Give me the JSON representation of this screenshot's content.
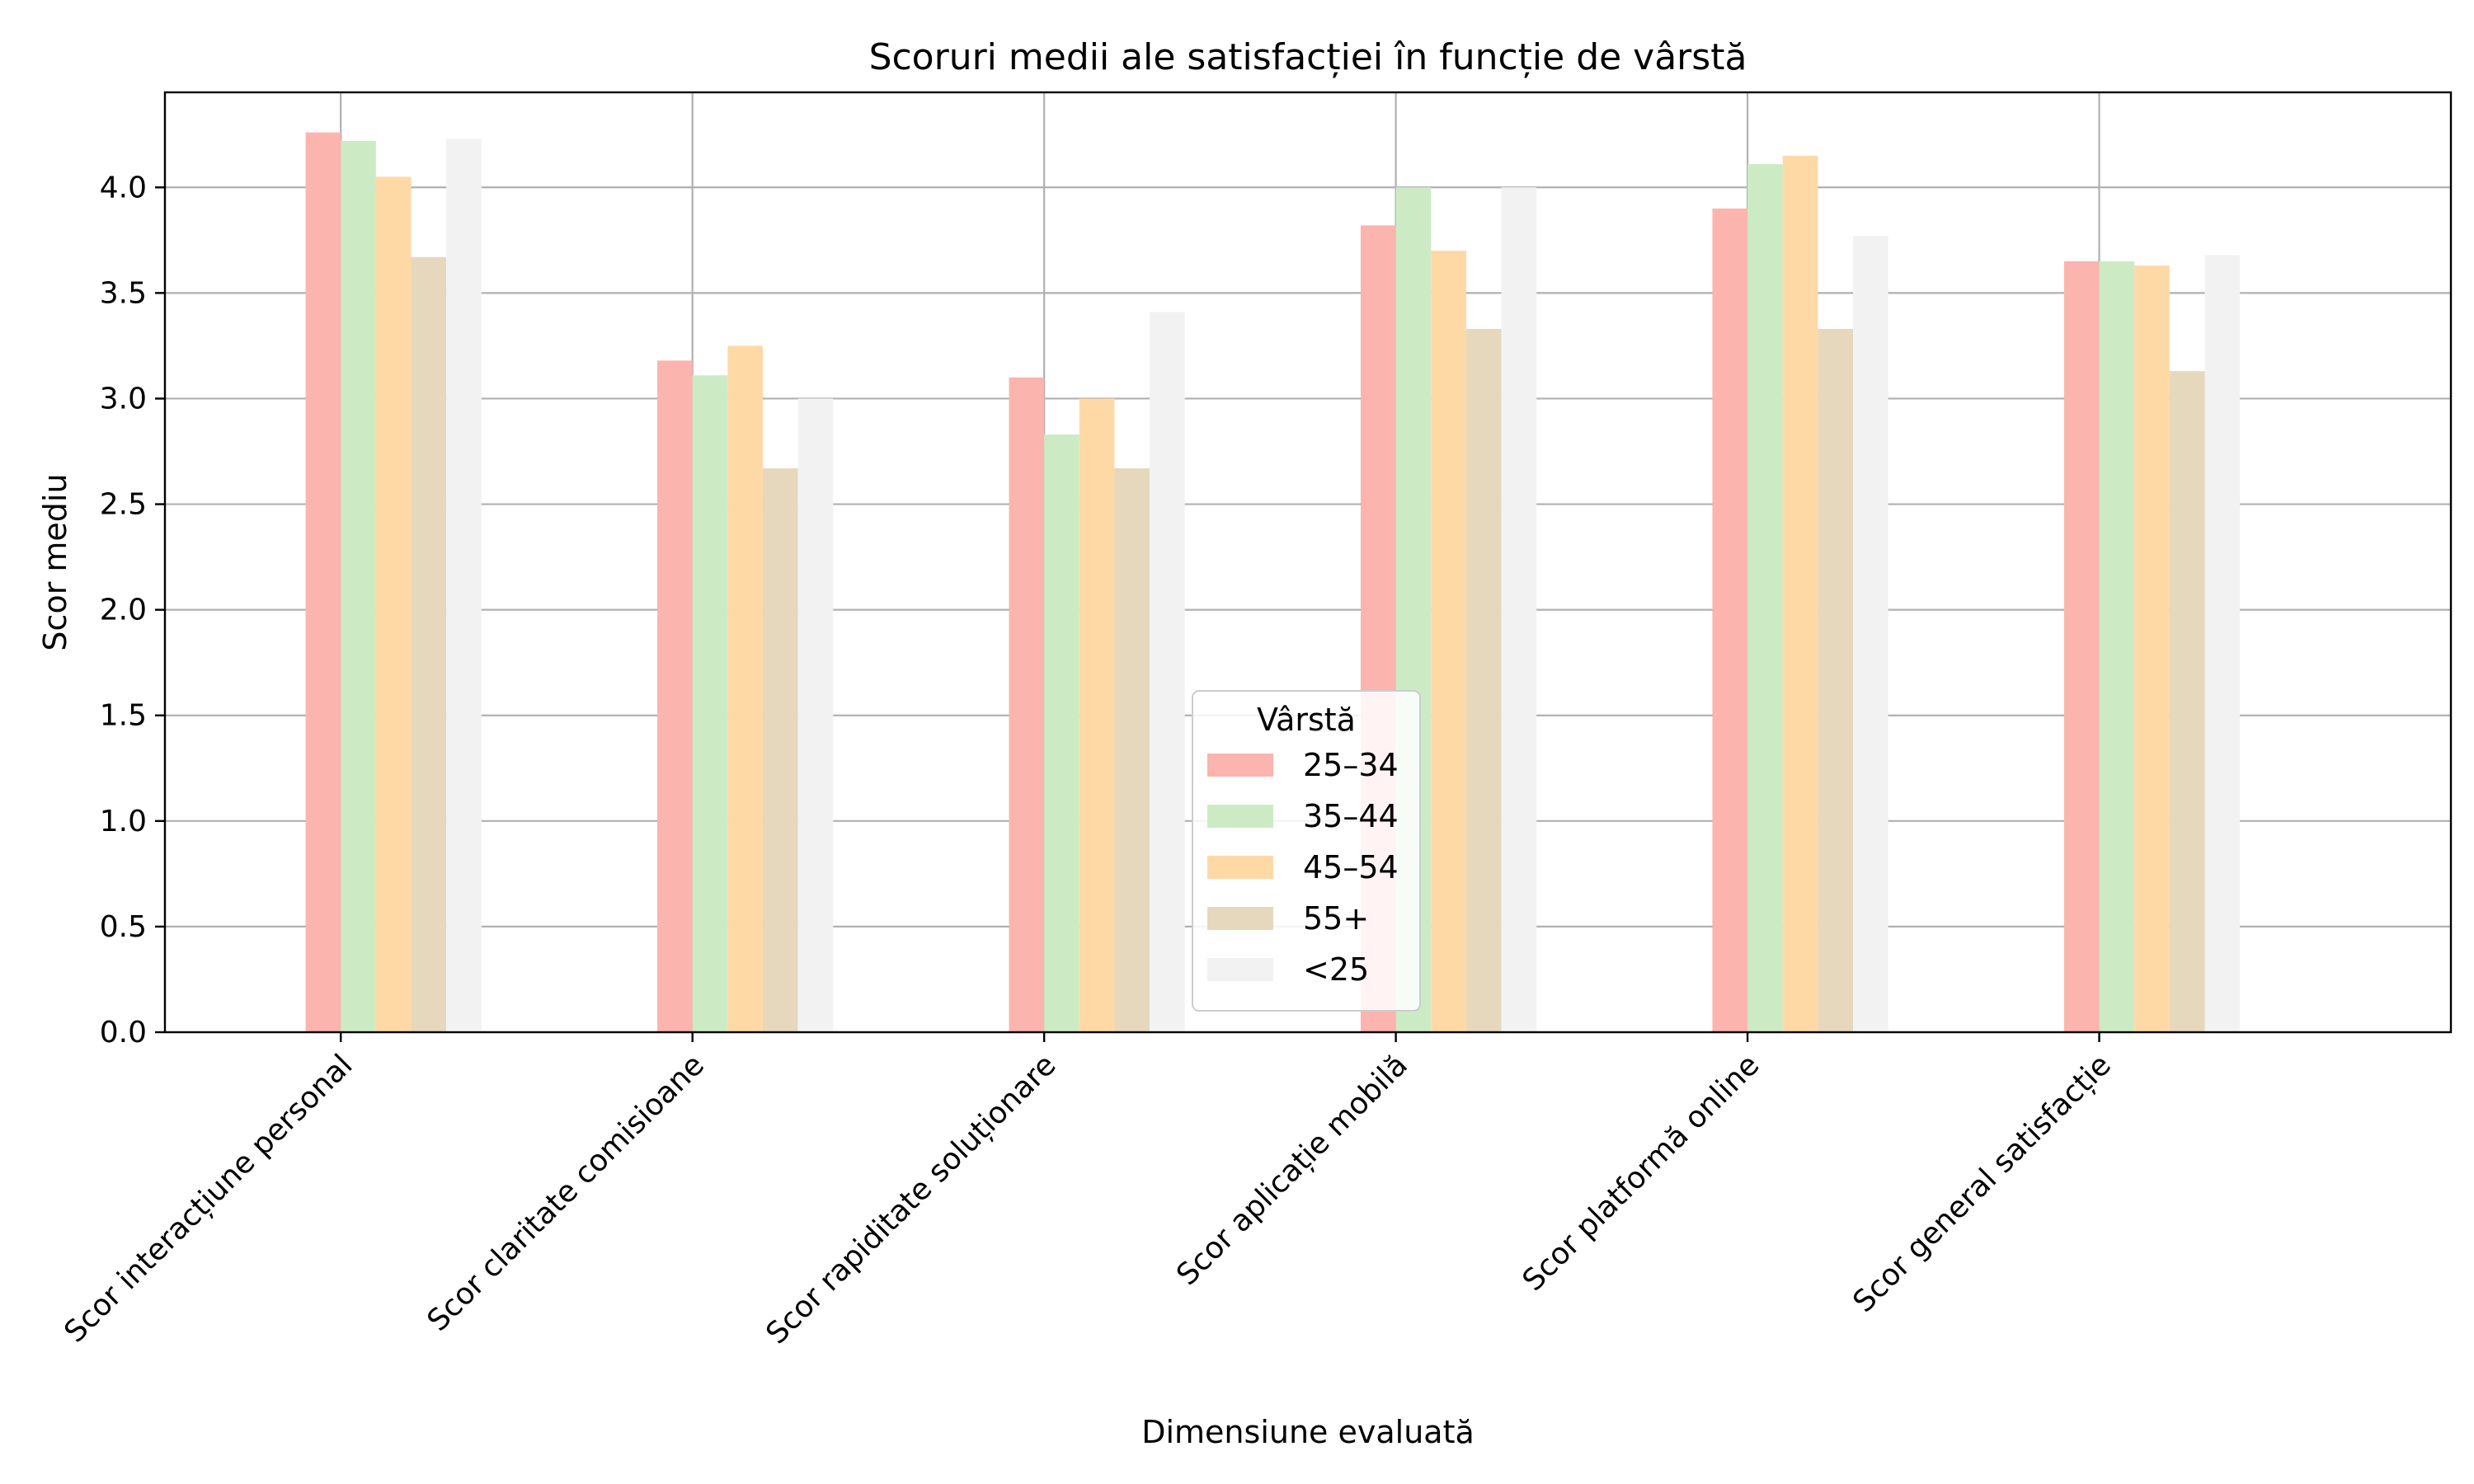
{
  "chart_data": {
    "type": "bar",
    "title": "Scoruri medii ale satisfacției în funcție de vârstă",
    "xlabel": "Dimensiune evaluată",
    "ylabel": "Scor mediu",
    "ylim": [
      0,
      4.45
    ],
    "yticks": [
      "0.0",
      "0.5",
      "1.0",
      "1.5",
      "2.0",
      "2.5",
      "3.0",
      "3.5",
      "4.0"
    ],
    "grid": true,
    "legend": {
      "title": "Vârstă",
      "placement": "lower-center"
    },
    "categories": [
      "Scor interacțiune personal",
      "Scor claritate comisioane",
      "Scor rapiditate soluționare",
      "Scor aplicație mobilă",
      "Scor platformă online",
      "Scor general satisfacție"
    ],
    "series": [
      {
        "name": "25–34",
        "color": "#fbb4ae",
        "values": [
          4.26,
          3.18,
          3.1,
          3.82,
          3.9,
          3.65
        ]
      },
      {
        "name": "35–44",
        "color": "#ccebc5",
        "values": [
          4.22,
          3.11,
          2.83,
          4.0,
          4.11,
          3.65
        ]
      },
      {
        "name": "45–54",
        "color": "#fed9a6",
        "values": [
          4.05,
          3.25,
          3.0,
          3.7,
          4.15,
          3.63
        ]
      },
      {
        "name": "55+",
        "color": "#e5d8bd",
        "values": [
          3.67,
          2.67,
          2.67,
          3.33,
          3.33,
          3.13
        ]
      },
      {
        "name": "<25",
        "color": "#f2f2f2",
        "values": [
          4.23,
          3.0,
          3.41,
          4.0,
          3.77,
          3.68
        ]
      }
    ]
  }
}
